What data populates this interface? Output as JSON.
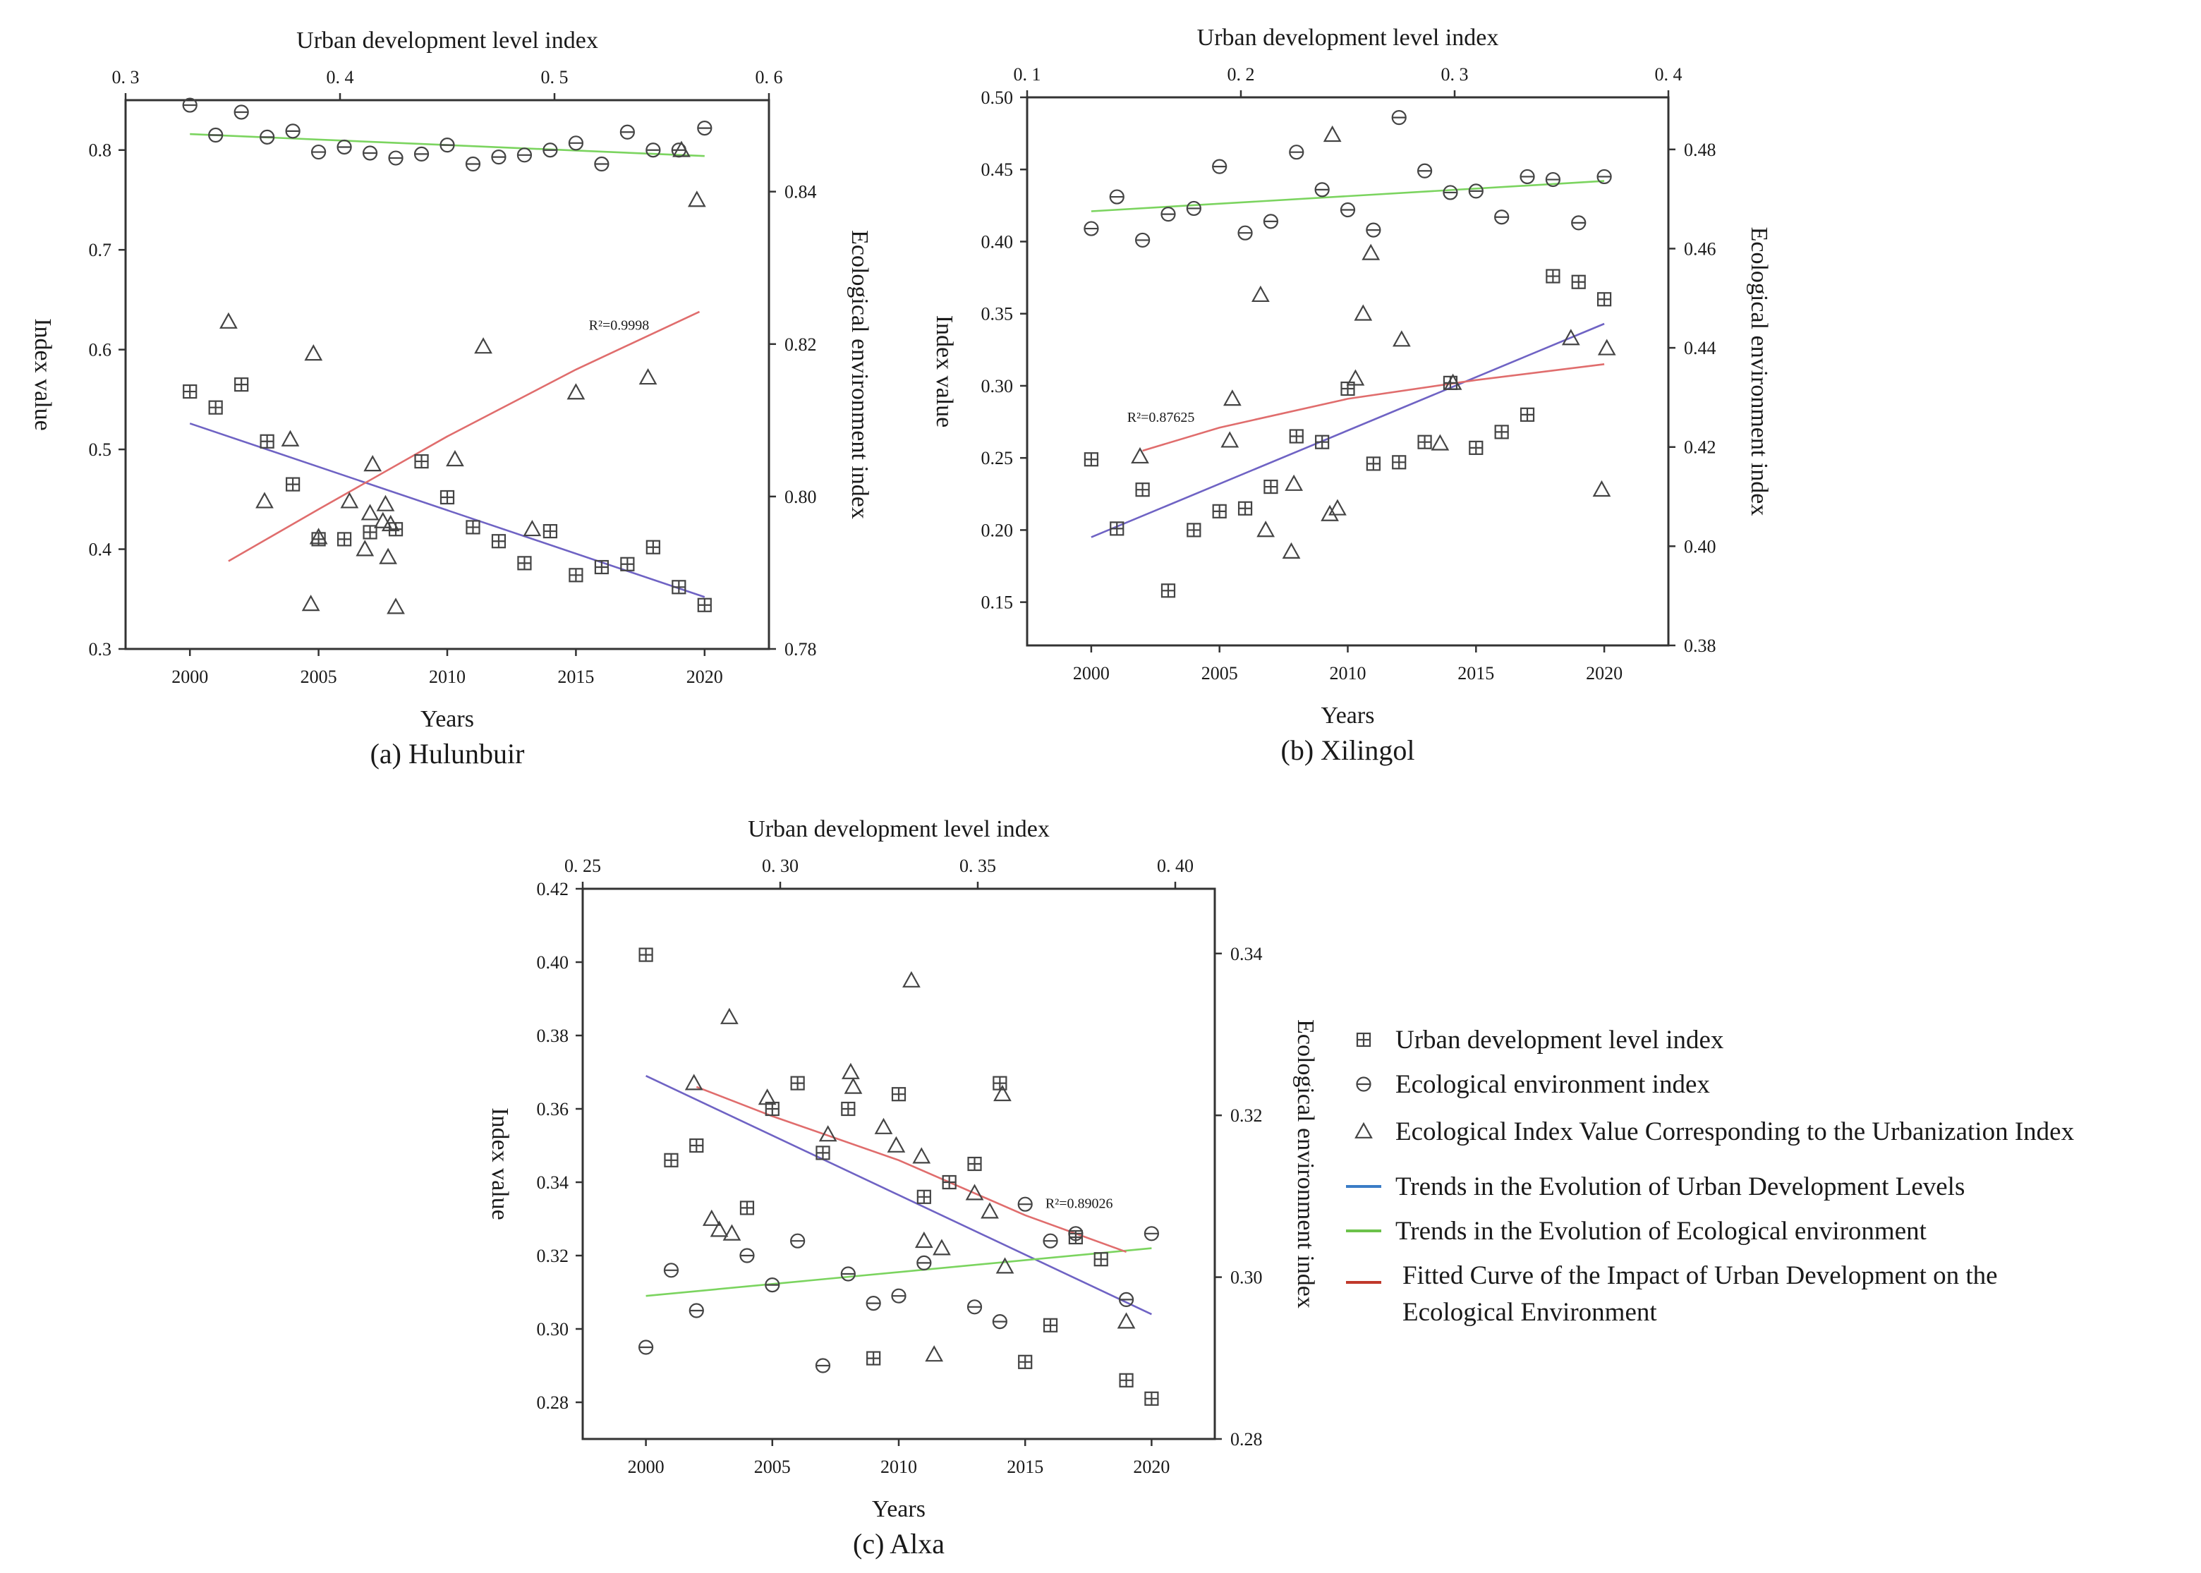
{
  "colors": {
    "urban_trend": "#6f63c4",
    "eco_trend": "#7bd45f",
    "fitted_curve": "#e06d6d",
    "legend_urban_line": "#3a7cc6",
    "legend_eco_line": "#6cc24a",
    "legend_fit_line": "#c0392b",
    "axis": "#333333"
  },
  "chart_data": [
    {
      "id": "a",
      "type": "scatter",
      "caption": "(a) Hulunbuir",
      "xlabel": "Years",
      "top_xlabel": "Urban development level index",
      "ylabel_left": "Index value",
      "ylabel_right": "Ecological environment index",
      "xlim": [
        1997.5,
        2022.5
      ],
      "xticks": [
        2000,
        2005,
        2010,
        2015,
        2020
      ],
      "ylim_left": [
        0.3,
        0.85
      ],
      "yticks_left": [
        0.3,
        0.4,
        0.5,
        0.6,
        0.7,
        0.8
      ],
      "ytick_labels_left": [
        "0.3",
        "0.4",
        "0.5",
        "0.6",
        "0.7",
        "0.8"
      ],
      "ylim_right": [
        0.78,
        0.852
      ],
      "yticks_right": [
        0.78,
        0.8,
        0.82,
        0.84
      ],
      "ytick_labels_right": [
        "0.78",
        "0.80",
        "0.82",
        "0.84"
      ],
      "top_lim": [
        0.3,
        0.6
      ],
      "top_ticks": [
        0.3,
        0.4,
        0.5,
        0.6
      ],
      "top_tick_labels": [
        "0. 3",
        "0. 4",
        "0. 5",
        "0. 6"
      ],
      "annotation": "R²=0.9998",
      "annotation_at": [
        2015.5,
        0.62
      ],
      "series": [
        {
          "name": "Urban development level index",
          "marker": "square-plus",
          "axis": "left",
          "x": [
            2000,
            2001,
            2002,
            2003,
            2004,
            2005,
            2006,
            2007,
            2008,
            2009,
            2010,
            2011,
            2012,
            2013,
            2014,
            2015,
            2016,
            2017,
            2018,
            2019,
            2020
          ],
          "y": [
            0.558,
            0.542,
            0.565,
            0.508,
            0.465,
            0.41,
            0.41,
            0.417,
            0.42,
            0.488,
            0.452,
            0.422,
            0.408,
            0.386,
            0.418,
            0.374,
            0.382,
            0.385,
            0.402,
            0.362,
            0.344
          ]
        },
        {
          "name": "Ecological environment index",
          "marker": "circle-minus",
          "axis": "left",
          "x": [
            2000,
            2001,
            2002,
            2003,
            2004,
            2005,
            2006,
            2007,
            2008,
            2009,
            2010,
            2011,
            2012,
            2013,
            2014,
            2015,
            2016,
            2017,
            2018,
            2019,
            2020
          ],
          "y": [
            0.845,
            0.815,
            0.838,
            0.813,
            0.819,
            0.798,
            0.803,
            0.797,
            0.792,
            0.796,
            0.805,
            0.786,
            0.793,
            0.795,
            0.8,
            0.807,
            0.786,
            0.818,
            0.8,
            0.8,
            0.822
          ]
        },
        {
          "name": "Ecological Index Value Corresponding to the Urbanization Index",
          "marker": "triangle",
          "axis": "left",
          "x": [
            2001.5,
            2002.9,
            2003.9,
            2004.7,
            2004.8,
            2005.0,
            2006.2,
            2006.8,
            2007.0,
            2007.1,
            2007.5,
            2007.6,
            2007.7,
            2007.8,
            2008.0,
            2011.4,
            2010.3,
            2013.3,
            2015.0,
            2017.8,
            2019.1,
            2019.7
          ],
          "y": [
            0.628,
            0.448,
            0.51,
            0.345,
            0.596,
            0.412,
            0.448,
            0.4,
            0.436,
            0.485,
            0.428,
            0.445,
            0.392,
            0.425,
            0.342,
            0.603,
            0.49,
            0.42,
            0.557,
            0.572,
            0.8,
            0.75
          ]
        },
        {
          "name": "Trends in the Evolution of Urban Development Levels",
          "type": "line",
          "x": [
            2000,
            2020
          ],
          "y": [
            0.526,
            0.352
          ]
        },
        {
          "name": "Trends in the Evolution of Ecological environment",
          "type": "line",
          "x": [
            2000,
            2020
          ],
          "y": [
            0.816,
            0.794
          ]
        },
        {
          "name": "Fitted Curve of the Impact of Urban Development on the Ecological Environment",
          "type": "line",
          "x": [
            2001.5,
            2005,
            2010,
            2015,
            2019.8
          ],
          "y": [
            0.388,
            0.44,
            0.513,
            0.58,
            0.638
          ]
        }
      ]
    },
    {
      "id": "b",
      "type": "scatter",
      "caption": "(b) Xilingol",
      "xlabel": "Years",
      "top_xlabel": "Urban development level index",
      "ylabel_left": "Index value",
      "ylabel_right": "Ecological environment index",
      "xlim": [
        1997.5,
        2022.5
      ],
      "xticks": [
        2000,
        2005,
        2010,
        2015,
        2020
      ],
      "ylim_left": [
        0.12,
        0.5
      ],
      "yticks_left": [
        0.15,
        0.2,
        0.25,
        0.3,
        0.35,
        0.4,
        0.45,
        0.5
      ],
      "ytick_labels_left": [
        "0.15",
        "0.20",
        "0.25",
        "0.30",
        "0.35",
        "0.40",
        "0.45",
        "0.50"
      ],
      "ylim_right": [
        0.38,
        0.4905
      ],
      "yticks_right": [
        0.38,
        0.4,
        0.42,
        0.44,
        0.46,
        0.48
      ],
      "ytick_labels_right": [
        "0.38",
        "0.40",
        "0.42",
        "0.44",
        "0.46",
        "0.48"
      ],
      "top_lim": [
        0.1,
        0.4
      ],
      "top_ticks": [
        0.1,
        0.2,
        0.3,
        0.4
      ],
      "top_tick_labels": [
        "0. 1",
        "0. 2",
        "0. 3",
        "0. 4"
      ],
      "annotation": "R²=0.87625",
      "annotation_at": [
        2001.4,
        0.275
      ],
      "series": [
        {
          "name": "Urban development level index",
          "marker": "square-plus",
          "axis": "left",
          "x": [
            2000,
            2001,
            2002,
            2003,
            2004,
            2005,
            2006,
            2007,
            2008,
            2009,
            2010,
            2011,
            2012,
            2013,
            2014,
            2015,
            2016,
            2017,
            2018,
            2019,
            2020
          ],
          "y": [
            0.249,
            0.201,
            0.228,
            0.158,
            0.2,
            0.213,
            0.215,
            0.23,
            0.265,
            0.261,
            0.298,
            0.246,
            0.247,
            0.261,
            0.302,
            0.257,
            0.268,
            0.28,
            0.376,
            0.372,
            0.36
          ]
        },
        {
          "name": "Ecological environment index",
          "marker": "circle-minus",
          "axis": "left",
          "x": [
            2000,
            2001,
            2002,
            2003,
            2004,
            2005,
            2006,
            2007,
            2008,
            2009,
            2010,
            2011,
            2012,
            2013,
            2014,
            2015,
            2016,
            2017,
            2018,
            2019,
            2020
          ],
          "y": [
            0.409,
            0.431,
            0.401,
            0.419,
            0.423,
            0.452,
            0.406,
            0.414,
            0.462,
            0.436,
            0.422,
            0.408,
            0.486,
            0.449,
            0.434,
            0.435,
            0.417,
            0.445,
            0.443,
            0.413,
            0.445
          ]
        },
        {
          "name": "Ecological Index Value Corresponding to the Urbanization Index",
          "marker": "triangle",
          "axis": "left",
          "x": [
            2001.9,
            2005.5,
            2005.4,
            2006.6,
            2006.8,
            2007.8,
            2007.9,
            2009.3,
            2009.4,
            2009.6,
            2010.3,
            2010.6,
            2010.9,
            2012.1,
            2013.6,
            2014.1,
            2018.7,
            2019.9,
            2020.1
          ],
          "y": [
            0.251,
            0.291,
            0.262,
            0.363,
            0.2,
            0.185,
            0.232,
            0.211,
            0.474,
            0.215,
            0.305,
            0.35,
            0.392,
            0.332,
            0.26,
            0.302,
            0.333,
            0.228,
            0.326
          ]
        },
        {
          "name": "Trends in the Evolution of Urban Development Levels",
          "type": "line",
          "x": [
            2000,
            2020
          ],
          "y": [
            0.195,
            0.343
          ]
        },
        {
          "name": "Trends in the Evolution of Ecological environment",
          "type": "line",
          "x": [
            2000,
            2020
          ],
          "y": [
            0.421,
            0.442
          ]
        },
        {
          "name": "Fitted Curve of the Impact of Urban Development on the Ecological Environment",
          "type": "line",
          "x": [
            2002,
            2005,
            2010,
            2015,
            2020
          ],
          "y": [
            0.255,
            0.271,
            0.291,
            0.304,
            0.315
          ]
        }
      ]
    },
    {
      "id": "c",
      "type": "scatter",
      "caption": "(c) Alxa",
      "xlabel": "Years",
      "top_xlabel": "Urban development level index",
      "ylabel_left": "Index value",
      "ylabel_right": "Ecological environment index",
      "xlim": [
        1997.5,
        2022.5
      ],
      "xticks": [
        2000,
        2005,
        2010,
        2015,
        2020
      ],
      "ylim_left": [
        0.27,
        0.42
      ],
      "yticks_left": [
        0.28,
        0.3,
        0.32,
        0.34,
        0.36,
        0.38,
        0.4,
        0.42
      ],
      "ytick_labels_left": [
        "0.28",
        "0.30",
        "0.32",
        "0.34",
        "0.36",
        "0.38",
        "0.40",
        "0.42"
      ],
      "ylim_right": [
        0.28,
        0.348
      ],
      "yticks_right": [
        0.28,
        0.3,
        0.32,
        0.34
      ],
      "ytick_labels_right": [
        "0.28",
        "0.30",
        "0.32",
        "0.34"
      ],
      "top_lim": [
        0.25,
        0.41
      ],
      "top_ticks": [
        0.25,
        0.3,
        0.35,
        0.4
      ],
      "top_tick_labels": [
        "0. 25",
        "0. 30",
        "0. 35",
        "0. 40"
      ],
      "annotation": "R²=0.89026",
      "annotation_at": [
        2015.8,
        0.333
      ],
      "series": [
        {
          "name": "Urban development level index",
          "marker": "square-plus",
          "axis": "left",
          "x": [
            2000,
            2001,
            2002,
            2004,
            2005,
            2006,
            2007,
            2008,
            2009,
            2010,
            2011,
            2012,
            2013,
            2014,
            2015,
            2016,
            2017,
            2018,
            2019,
            2020
          ],
          "y": [
            0.402,
            0.346,
            0.35,
            0.333,
            0.36,
            0.367,
            0.348,
            0.36,
            0.292,
            0.364,
            0.336,
            0.34,
            0.345,
            0.367,
            0.291,
            0.301,
            0.325,
            0.319,
            0.286,
            0.281
          ]
        },
        {
          "name": "Ecological environment index",
          "marker": "circle-minus",
          "axis": "left",
          "x": [
            2000,
            2001,
            2002,
            2004,
            2005,
            2006,
            2007,
            2008,
            2009,
            2010,
            2011,
            2013,
            2014,
            2015,
            2016,
            2017,
            2019,
            2020
          ],
          "y": [
            0.295,
            0.316,
            0.305,
            0.32,
            0.312,
            0.324,
            0.29,
            0.315,
            0.307,
            0.309,
            0.318,
            0.306,
            0.302,
            0.334,
            0.324,
            0.326,
            0.308,
            0.326
          ]
        },
        {
          "name": "Ecological Index Value Corresponding to the Urbanization Index",
          "marker": "triangle",
          "axis": "left",
          "x": [
            2001.9,
            2002.6,
            2002.9,
            2003.3,
            2003.4,
            2004.8,
            2007.2,
            2008.1,
            2008.2,
            2009.4,
            2009.9,
            2010.5,
            2010.9,
            2011.0,
            2011.4,
            2011.7,
            2013.0,
            2013.6,
            2014.1,
            2014.2,
            2019.0
          ],
          "y": [
            0.367,
            0.33,
            0.327,
            0.385,
            0.326,
            0.363,
            0.353,
            0.37,
            0.366,
            0.355,
            0.35,
            0.395,
            0.347,
            0.324,
            0.293,
            0.322,
            0.337,
            0.332,
            0.364,
            0.317,
            0.302
          ]
        },
        {
          "name": "Trends in the Evolution of Urban Development Levels",
          "type": "line",
          "x": [
            2000,
            2020
          ],
          "y": [
            0.369,
            0.304
          ]
        },
        {
          "name": "Trends in the Evolution of Ecological environment",
          "type": "line",
          "x": [
            2000,
            2020
          ],
          "y": [
            0.309,
            0.322
          ]
        },
        {
          "name": "Fitted Curve of the Impact of Urban Development on the Ecological Environment",
          "type": "line",
          "x": [
            2002,
            2005,
            2010,
            2015,
            2019
          ],
          "y": [
            0.366,
            0.358,
            0.346,
            0.331,
            0.321
          ]
        }
      ]
    }
  ],
  "legend": {
    "items": [
      {
        "label": "Urban development level index",
        "kind": "square-plus"
      },
      {
        "label": "Ecological environment index",
        "kind": "circle-minus"
      },
      {
        "label": "Ecological Index Value Corresponding to the Urbanization Index",
        "kind": "triangle"
      },
      {
        "label": "Trends in the Evolution of Urban Development Levels",
        "kind": "line-urban"
      },
      {
        "label": "Trends in the Evolution of Ecological environment",
        "kind": "line-eco"
      },
      {
        "label": "Fitted Curve of the Impact of Urban Development on the",
        "label_line2": "Ecological Environment",
        "kind": "line-fit"
      }
    ]
  }
}
